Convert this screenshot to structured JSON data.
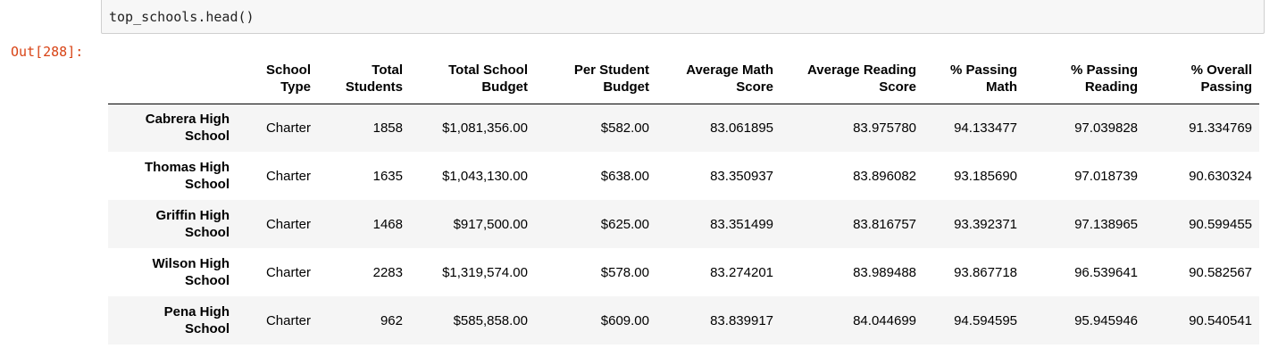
{
  "input_cell": {
    "code": "top_schools.head()"
  },
  "output": {
    "prompt": "Out[288]:"
  },
  "table": {
    "columns": [
      "",
      "School Type",
      "Total Students",
      "Total School Budget",
      "Per Student Budget",
      "Average Math Score",
      "Average Reading Score",
      "% Passing Math",
      "% Passing Reading",
      "% Overall Passing"
    ],
    "column_lines": [
      [
        "",
        ""
      ],
      [
        "School",
        "Type"
      ],
      [
        "Total",
        "Students"
      ],
      [
        "Total School",
        "Budget"
      ],
      [
        "Per Student",
        "Budget"
      ],
      [
        "Average Math",
        "Score"
      ],
      [
        "Average Reading",
        "Score"
      ],
      [
        "% Passing",
        "Math"
      ],
      [
        "% Passing",
        "Reading"
      ],
      [
        "% Overall",
        "Passing"
      ]
    ],
    "rows": [
      {
        "index": [
          "Cabrera High",
          "School"
        ],
        "cells": [
          "Charter",
          "1858",
          "$1,081,356.00",
          "$582.00",
          "83.061895",
          "83.975780",
          "94.133477",
          "97.039828",
          "91.334769"
        ]
      },
      {
        "index": [
          "Thomas High",
          "School"
        ],
        "cells": [
          "Charter",
          "1635",
          "$1,043,130.00",
          "$638.00",
          "83.350937",
          "83.896082",
          "93.185690",
          "97.018739",
          "90.630324"
        ]
      },
      {
        "index": [
          "Griffin High",
          "School"
        ],
        "cells": [
          "Charter",
          "1468",
          "$917,500.00",
          "$625.00",
          "83.351499",
          "83.816757",
          "93.392371",
          "97.138965",
          "90.599455"
        ]
      },
      {
        "index": [
          "Wilson High",
          "School"
        ],
        "cells": [
          "Charter",
          "2283",
          "$1,319,574.00",
          "$578.00",
          "83.274201",
          "83.989488",
          "93.867718",
          "96.539641",
          "90.582567"
        ]
      },
      {
        "index": [
          "Pena High",
          "School"
        ],
        "cells": [
          "Charter",
          "962",
          "$585,858.00",
          "$609.00",
          "83.839917",
          "84.044699",
          "94.594595",
          "95.945946",
          "90.540541"
        ]
      }
    ]
  },
  "colors": {
    "prompt_out": "#d84315",
    "input_bg": "#f7f7f7",
    "row_stripe": "#f5f5f5"
  }
}
